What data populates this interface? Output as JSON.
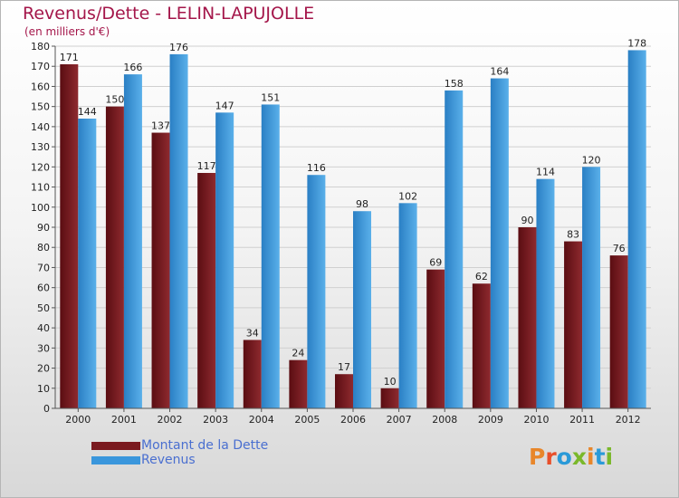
{
  "title": "Revenus/Dette - LELIN-LAPUJOLLE",
  "subtitle": "(en milliers d'€)",
  "logo_text": "Proxiti",
  "colors": {
    "debt": "#7a1a1f",
    "revenue": "#3a96dc",
    "title": "#a4164a",
    "legend_text": "#4a6fd0"
  },
  "chart_data": {
    "type": "bar",
    "title": "Revenus/Dette - LELIN-LAPUJOLLE",
    "ylabel": "(en milliers d'€)",
    "categories": [
      "2000",
      "2001",
      "2002",
      "2003",
      "2004",
      "2005",
      "2006",
      "2007",
      "2008",
      "2009",
      "2010",
      "2011",
      "2012"
    ],
    "series": [
      {
        "name": "Montant de la Dette",
        "values": [
          171,
          150,
          137,
          117,
          34,
          24,
          17,
          10,
          69,
          62,
          90,
          83,
          76
        ]
      },
      {
        "name": "Revenus",
        "values": [
          144,
          166,
          176,
          147,
          151,
          116,
          98,
          102,
          158,
          164,
          114,
          120,
          178
        ]
      }
    ],
    "ylim": [
      0,
      180
    ],
    "yticks": [
      0,
      10,
      20,
      30,
      40,
      50,
      60,
      70,
      80,
      90,
      100,
      110,
      120,
      130,
      140,
      150,
      160,
      170,
      180
    ],
    "grid": true,
    "legend_position": "bottom-left"
  }
}
